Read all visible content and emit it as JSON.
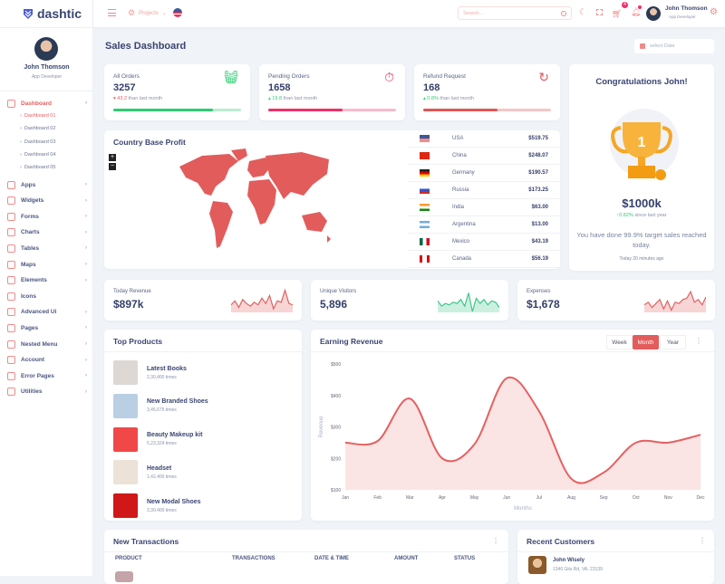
{
  "app": {
    "name": "dashtic"
  },
  "header": {
    "projects_label": "Projects",
    "search_placeholder": "Search...",
    "cart_badge": "4",
    "user_name": "John Thomson",
    "user_role": "App Developer"
  },
  "sidebar": {
    "user_name": "John Thomson",
    "user_role": "App Developer",
    "items": [
      {
        "label": "Dashboard",
        "active": true
      },
      {
        "label": "Apps"
      },
      {
        "label": "Widgets"
      },
      {
        "label": "Forms"
      },
      {
        "label": "Charts"
      },
      {
        "label": "Tables"
      },
      {
        "label": "Maps"
      },
      {
        "label": "Elements"
      },
      {
        "label": "Icons"
      },
      {
        "label": "Advanced Ui"
      },
      {
        "label": "Pages"
      },
      {
        "label": "Nested Menu"
      },
      {
        "label": "Account"
      },
      {
        "label": "Error Pages"
      },
      {
        "label": "Utilities"
      }
    ],
    "sub_items": [
      "Dashboard 01",
      "Dashboard 02",
      "Dashboard 03",
      "Dashboard 04",
      "Dashboard 05"
    ]
  },
  "page": {
    "title": "Sales Dashboard",
    "date_placeholder": "select Date"
  },
  "stats": [
    {
      "label": "All Orders",
      "value": "3257",
      "change": "43.2",
      "suffix": "than last month",
      "trend": "down",
      "progress": 78,
      "color": "#2ecc71",
      "icon": "basket-icon"
    },
    {
      "label": "Pending Orders",
      "value": "1658",
      "change": "19.8",
      "suffix": "than last month",
      "trend": "up",
      "progress": 58,
      "color": "#f0306a",
      "icon": "stopwatch-icon"
    },
    {
      "label": "Refund Request",
      "value": "168",
      "change": "0.8%",
      "suffix": "than last month",
      "trend": "up",
      "progress": 58,
      "color": "#e05555",
      "icon": "refresh-icon"
    }
  ],
  "country": {
    "title": "Country Base Profit",
    "rows": [
      {
        "name": "USA",
        "amount": "$519.75"
      },
      {
        "name": "China",
        "amount": "$248.07"
      },
      {
        "name": "Germany",
        "amount": "$190.57"
      },
      {
        "name": "Russia",
        "amount": "$173.25"
      },
      {
        "name": "India",
        "amount": "$63.00"
      },
      {
        "name": "Argentina",
        "amount": "$13.00"
      },
      {
        "name": "Mexico",
        "amount": "$43.19"
      },
      {
        "name": "Canada",
        "amount": "$56.19"
      }
    ]
  },
  "congrats": {
    "title_prefix": "Congratulations ",
    "title_name": "John!",
    "amount": "$1000k",
    "change": "0.82%",
    "change_suffix": "since last year",
    "message": "You have done 99.9% target sales reached today.",
    "time": "Today 20 minutes ago"
  },
  "mini": [
    {
      "label": "Today Revenue",
      "value": "$897k",
      "color": "#e06060"
    },
    {
      "label": "Unique Visitors",
      "value": "5,896",
      "color": "#3ec78a"
    },
    {
      "label": "Expenses",
      "value": "$1,678",
      "color": "#e06060"
    }
  ],
  "products": {
    "title": "Top Products",
    "items": [
      {
        "name": "Latest Books",
        "times": "2,30,400 times"
      },
      {
        "name": "New Branded Shoes",
        "times": "3,45,675 times"
      },
      {
        "name": "Beauty Makeup kit",
        "times": "5,23,324 times"
      },
      {
        "name": "Headset",
        "times": "1,42,400 times"
      },
      {
        "name": "New Modal Shoes",
        "times": "3,30,400 times"
      }
    ]
  },
  "earning": {
    "title": "Earning Revenue",
    "tabs": [
      "Week",
      "Month",
      "Year"
    ],
    "active_tab": "Month"
  },
  "chart_data": {
    "type": "area",
    "categories": [
      "Jan",
      "Feb",
      "Mar",
      "Apr",
      "May",
      "Jun",
      "Jul",
      "Aug",
      "Sep",
      "Oct",
      "Nov",
      "Dec"
    ],
    "values": [
      250,
      255,
      390,
      200,
      245,
      455,
      350,
      135,
      155,
      250,
      250,
      275
    ],
    "yticks": [
      "$100",
      "$200",
      "$300",
      "$400",
      "$500"
    ],
    "ylim": [
      100,
      500
    ],
    "xlabel": "Months",
    "ylabel": "Revenue",
    "color": "#e56060"
  },
  "transactions": {
    "title": "New Transactions",
    "columns": [
      "PRODUCT",
      "TRANSACTIONS",
      "DATE & TIME",
      "AMOUNT",
      "STATUS"
    ]
  },
  "customers": {
    "title": "Recent Customers",
    "items": [
      {
        "name": "John Wisely",
        "address": "1340 Gits Rd, VA, 23139"
      }
    ]
  }
}
